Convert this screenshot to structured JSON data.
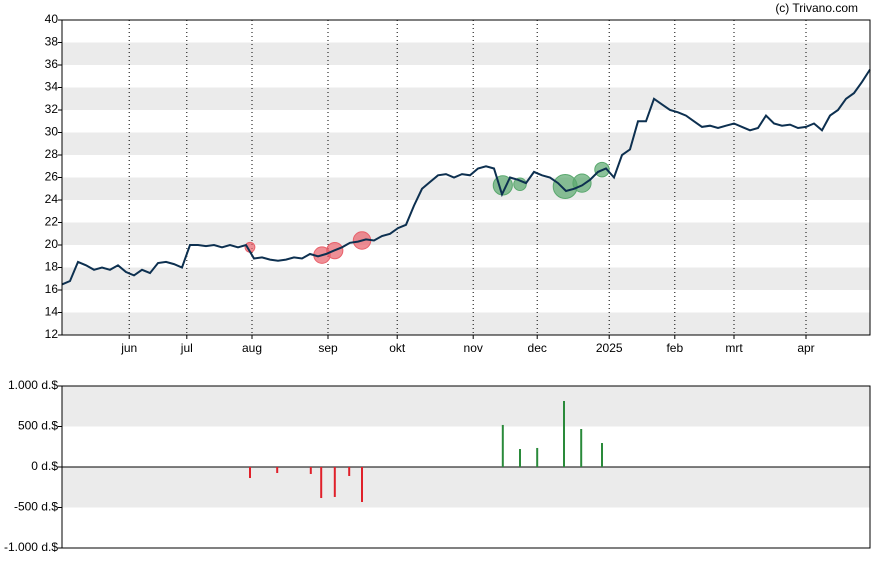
{
  "chart_data": [
    {
      "type": "line",
      "title": "(c) Trivano.com",
      "values": [
        16.5,
        16.8,
        18.5,
        18.2,
        17.8,
        18,
        17.8,
        18.2,
        17.6,
        17.3,
        17.8,
        17.5,
        18.4,
        18.5,
        18.3,
        18,
        20,
        20,
        19.9,
        20,
        19.8,
        20,
        19.8,
        20,
        18.8,
        18.9,
        18.7,
        18.6,
        18.7,
        18.9,
        18.8,
        19.2,
        19,
        19.2,
        19.5,
        19.8,
        20.2,
        20.3,
        20.5,
        20.4,
        20.8,
        21,
        21.5,
        21.8,
        23.5,
        25,
        25.6,
        26.2,
        26.3,
        26,
        26.3,
        26.2,
        26.8,
        27,
        26.8,
        24.5,
        26,
        25.8,
        25.5,
        26.5,
        26.2,
        26,
        25.5,
        24.8,
        25,
        25.3,
        25.8,
        26.5,
        26.8,
        26,
        28,
        28.5,
        31,
        31,
        33,
        32.5,
        32,
        31.8,
        31.5,
        31,
        30.5,
        30.6,
        30.4,
        30.6,
        30.8,
        30.5,
        30.2,
        30.4,
        31.5,
        30.8,
        30.6,
        30.7,
        30.4,
        30.5,
        30.8,
        30.2,
        31.5,
        32,
        33,
        33.5,
        34.5,
        35.6
      ],
      "color": "#0d3050",
      "bubbles": [
        {
          "color": "#e8606a",
          "x": [
            23.5,
            32.5,
            34.1,
            37.5
          ],
          "y": [
            19.8,
            19.1,
            19.5,
            20.4
          ],
          "size": [
            136,
            383,
            370,
            432
          ]
        },
        {
          "color": "#5aa86e",
          "x": [
            55.1,
            57.25,
            62.9,
            65,
            67.5
          ],
          "y": [
            25.3,
            25.4,
            25.2,
            25.5,
            26.7
          ],
          "size": [
            519,
            222,
            815,
            469,
            296
          ]
        }
      ],
      "xlim": [
        0,
        101
      ],
      "xticks": [
        {
          "value": 8.4,
          "label": "jun"
        },
        {
          "value": 15.6,
          "label": "jul"
        },
        {
          "value": 23.75,
          "label": "aug"
        },
        {
          "value": 33.25,
          "label": "sep"
        },
        {
          "value": 41.9,
          "label": "okt"
        },
        {
          "value": 51.4,
          "label": "nov"
        },
        {
          "value": 59.4,
          "label": "dec"
        },
        {
          "value": 68.4,
          "label": "2025"
        },
        {
          "value": 76.6,
          "label": "feb"
        },
        {
          "value": 84,
          "label": "mrt"
        },
        {
          "value": 93,
          "label": "apr"
        }
      ],
      "ylim": [
        12,
        40
      ],
      "yticks": [
        12,
        14,
        16,
        18,
        20,
        22,
        24,
        26,
        28,
        30,
        32,
        34,
        36,
        38,
        40
      ]
    },
    {
      "type": "bar",
      "x": [
        23.5,
        26.9,
        31.1,
        32.4,
        34.1,
        35.9,
        37.5,
        55.1,
        57.25,
        59.4,
        62.75,
        64.9,
        67.5
      ],
      "values": [
        -136,
        -74,
        -86,
        -383,
        -370,
        -111,
        -432,
        519,
        222,
        235,
        815,
        469,
        296
      ],
      "colors": [
        "#e0202a",
        "#2a8a3a"
      ],
      "xlim": [
        0,
        101
      ],
      "ylim": [
        -1000,
        1000
      ],
      "yticks": [
        {
          "value": -1000,
          "label": "-1.000 d.$"
        },
        {
          "value": -500,
          "label": "-500 d.$"
        },
        {
          "value": 0,
          "label": "0 d.$"
        },
        {
          "value": 500,
          "label": "500 d.$"
        },
        {
          "value": 1000,
          "label": "1.000 d.$"
        }
      ]
    }
  ]
}
